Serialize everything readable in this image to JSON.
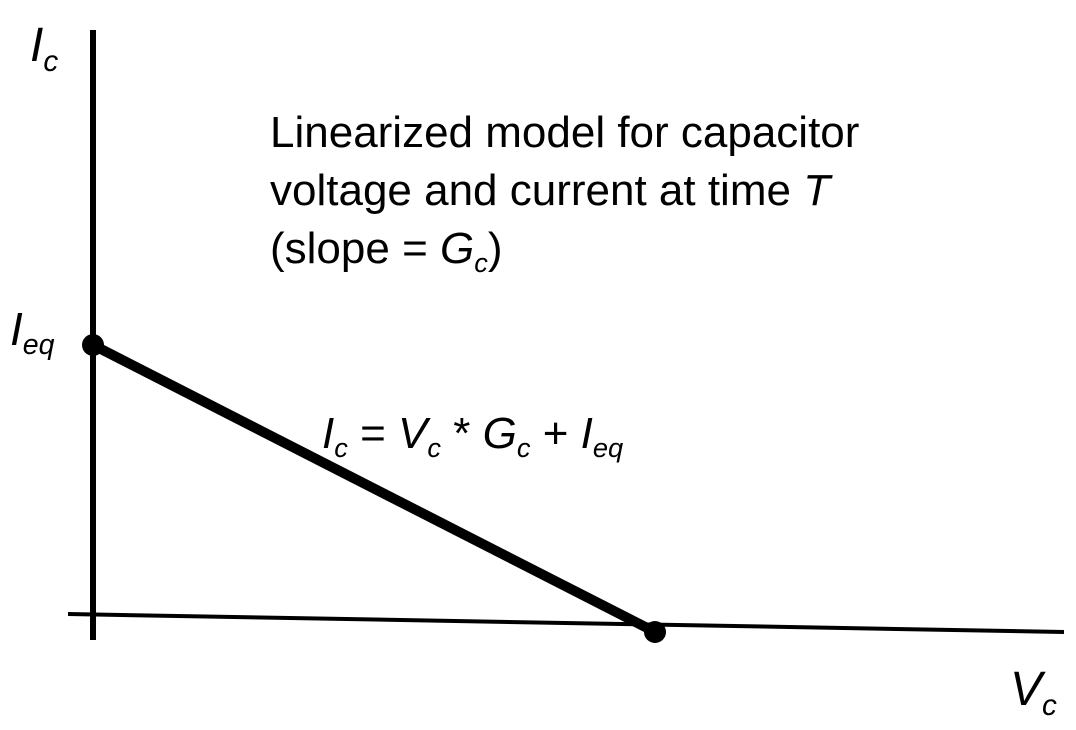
{
  "axes": {
    "y_label": "I",
    "y_label_sub": "c",
    "x_label": "V",
    "x_label_sub": "c",
    "intercept_label": "I",
    "intercept_label_sub": "eq"
  },
  "caption": {
    "line1": "Linearized model for capacitor",
    "line2_prefix": "voltage and current at time ",
    "line2_var": "T",
    "line3_prefix": "(slope = ",
    "line3_var": "G",
    "line3_var_sub": "c",
    "line3_suffix": ")"
  },
  "equation": {
    "lhs_var": "I",
    "lhs_sub": "c",
    "eq": " = ",
    "v_var": "V",
    "v_sub": "c",
    "times": " * ",
    "g_var": "G",
    "g_sub": "c",
    "plus": " + ",
    "i_var": "I",
    "i_sub": "eq"
  },
  "colors": {
    "ink": "#000000",
    "background": "#ffffff"
  }
}
